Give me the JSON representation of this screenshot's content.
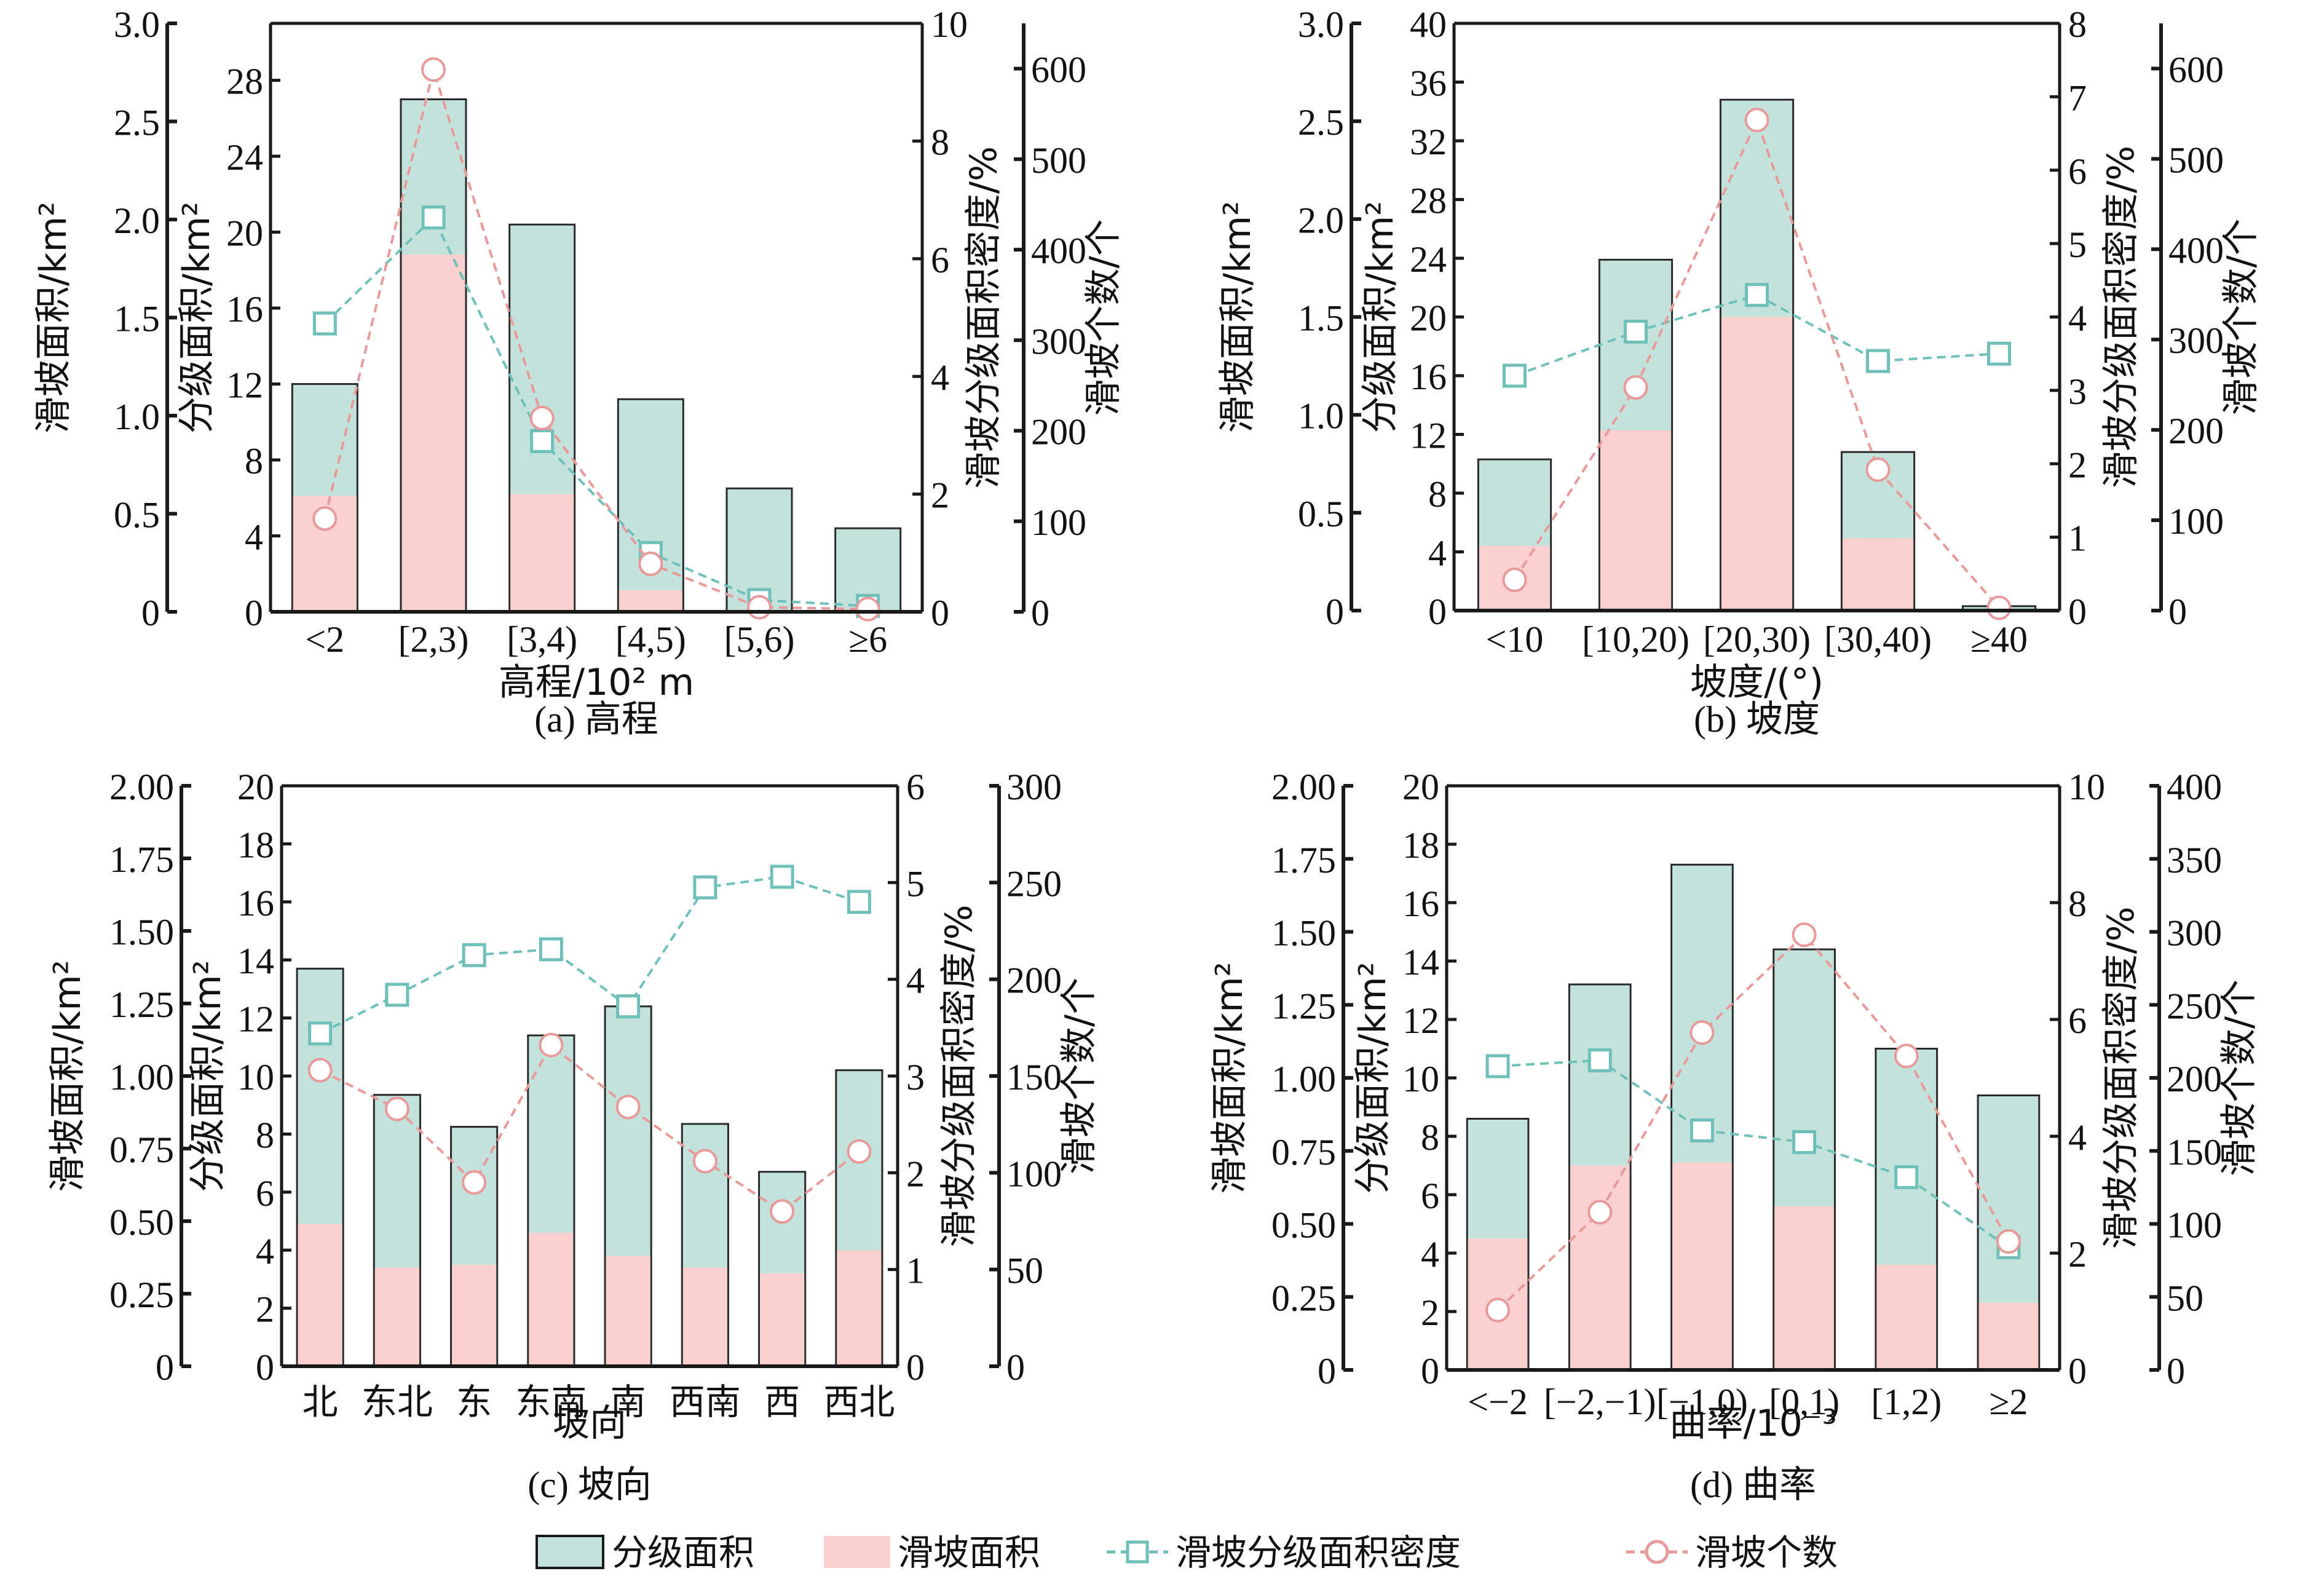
{
  "colors": {
    "class_area_fill": "#c3e2dc",
    "landslide_area_fill": "#f9d0ce",
    "density_line": "#6fc0b8",
    "count_line": "#e8999a",
    "axis": "#1a1a1a"
  },
  "legend": {
    "items": [
      {
        "key": "class_area",
        "label": "分级面积"
      },
      {
        "key": "landslide_area",
        "label": "滑坡面积"
      },
      {
        "key": "density",
        "label": "滑坡分级面积密度"
      },
      {
        "key": "count",
        "label": "滑坡个数"
      }
    ],
    "placement": "bottom-center"
  },
  "chart_data": [
    {
      "id": "a",
      "type": "bar",
      "title": "(a) 高程",
      "xlabel": "高程/10² m",
      "categories": [
        "<2",
        "[2,3)",
        "[3,4)",
        "[4,5)",
        "[5,6)",
        "≥6"
      ],
      "series": [
        {
          "name": "分级面积",
          "axis": "area",
          "kind": "bar",
          "values": [
            12.0,
            27.0,
            20.4,
            11.2,
            6.5,
            4.4
          ]
        },
        {
          "name": "滑坡面积",
          "axis": "landslide_area",
          "kind": "bar",
          "values": [
            0.59,
            1.82,
            0.6,
            0.11,
            0.01,
            0.005
          ]
        },
        {
          "name": "滑坡分级面积密度",
          "axis": "density",
          "kind": "line",
          "marker": "square",
          "values": [
            4.9,
            6.7,
            2.9,
            1.0,
            0.2,
            0.1
          ]
        },
        {
          "name": "滑坡个数",
          "axis": "count",
          "kind": "line",
          "marker": "circle",
          "values": [
            103,
            599,
            214,
            53,
            5,
            3
          ]
        }
      ],
      "axes": {
        "landslide_area": {
          "label": "滑坡面积/km²",
          "range": [
            0,
            3.0
          ],
          "ticks": [
            "0",
            "0.5",
            "1.0",
            "1.5",
            "2.0",
            "2.5",
            "3.0"
          ]
        },
        "area": {
          "label": "分级面积/km²",
          "range": [
            0,
            31
          ],
          "ticks": [
            "0",
            "4",
            "8",
            "12",
            "16",
            "20",
            "24",
            "28"
          ]
        },
        "density": {
          "label": "滑坡分级面积密度/%",
          "range": [
            0,
            10
          ],
          "ticks": [
            "0",
            "2",
            "4",
            "6",
            "8",
            "10"
          ]
        },
        "count": {
          "label": "滑坡个数/个",
          "range": [
            0,
            650
          ],
          "ticks": [
            "0",
            "100",
            "200",
            "300",
            "400",
            "500",
            "600"
          ]
        }
      }
    },
    {
      "id": "b",
      "type": "bar",
      "title": "(b) 坡度",
      "xlabel": "坡度/(°)",
      "categories": [
        "<10",
        "[10,20)",
        "[20,30)",
        "[30,40)",
        "≥40"
      ],
      "series": [
        {
          "name": "分级面积",
          "axis": "area",
          "kind": "bar",
          "values": [
            10.3,
            23.9,
            34.8,
            10.8,
            0.3
          ]
        },
        {
          "name": "滑坡面积",
          "axis": "landslide_area",
          "kind": "bar",
          "values": [
            0.33,
            0.92,
            1.5,
            0.37,
            0.005
          ]
        },
        {
          "name": "滑坡分级面积密度",
          "axis": "density",
          "kind": "line",
          "marker": "square",
          "values": [
            3.2,
            3.8,
            4.3,
            3.4,
            3.5
          ]
        },
        {
          "name": "滑坡个数",
          "axis": "count",
          "kind": "line",
          "marker": "circle",
          "values": [
            34,
            247,
            543,
            156,
            3
          ]
        }
      ],
      "axes": {
        "landslide_area": {
          "label": "滑坡面积/km²",
          "range": [
            0,
            3.0
          ],
          "ticks": [
            "0",
            "0.5",
            "1.0",
            "1.5",
            "2.0",
            "2.5",
            "3.0"
          ]
        },
        "area": {
          "label": "分级面积/km²",
          "range": [
            0,
            40
          ],
          "ticks": [
            "0",
            "4",
            "8",
            "12",
            "16",
            "20",
            "24",
            "28",
            "32",
            "36",
            "40"
          ]
        },
        "density": {
          "label": "滑坡分级面积密度/%",
          "range": [
            0,
            8
          ],
          "ticks": [
            "0",
            "1",
            "2",
            "3",
            "4",
            "5",
            "6",
            "7",
            "8"
          ]
        },
        "count": {
          "label": "滑坡个数/个",
          "range": [
            0,
            650
          ],
          "ticks": [
            "0",
            "100",
            "200",
            "300",
            "400",
            "500",
            "600"
          ]
        }
      }
    },
    {
      "id": "c",
      "type": "bar",
      "title": "(c) 坡向",
      "xlabel": "坡向",
      "categories": [
        "北",
        "东北",
        "东",
        "东南",
        "南",
        "西南",
        "西",
        "西北"
      ],
      "series": [
        {
          "name": "分级面积",
          "axis": "area",
          "kind": "bar",
          "values": [
            13.7,
            9.35,
            8.25,
            11.4,
            12.4,
            8.35,
            6.7,
            10.2
          ]
        },
        {
          "name": "滑坡面积",
          "axis": "landslide_area",
          "kind": "bar",
          "values": [
            0.49,
            0.34,
            0.35,
            0.46,
            0.38,
            0.34,
            0.32,
            0.4
          ]
        },
        {
          "name": "滑坡分级面积密度",
          "axis": "density",
          "kind": "line",
          "marker": "square",
          "values": [
            3.44,
            3.84,
            4.25,
            4.31,
            3.72,
            4.95,
            5.06,
            4.8
          ]
        },
        {
          "name": "滑坡个数",
          "axis": "count",
          "kind": "line",
          "marker": "circle",
          "values": [
            153,
            133,
            95,
            166,
            134,
            106,
            80,
            111
          ]
        }
      ],
      "axes": {
        "landslide_area": {
          "label": "滑坡面积/km²",
          "range": [
            0,
            2.0
          ],
          "ticks": [
            "0",
            "0.25",
            "0.50",
            "0.75",
            "1.00",
            "1.25",
            "1.50",
            "1.75",
            "2.00"
          ]
        },
        "area": {
          "label": "分级面积/km²",
          "range": [
            0,
            20
          ],
          "ticks": [
            "0",
            "2",
            "4",
            "6",
            "8",
            "10",
            "12",
            "14",
            "16",
            "18",
            "20"
          ]
        },
        "density": {
          "label": "滑坡分级面积密度/%",
          "range": [
            0,
            6
          ],
          "ticks": [
            "0",
            "1",
            "2",
            "3",
            "4",
            "5",
            "6"
          ]
        },
        "count": {
          "label": "滑坡个数/个",
          "range": [
            0,
            300
          ],
          "ticks": [
            "0",
            "50",
            "100",
            "150",
            "200",
            "250",
            "300"
          ]
        }
      }
    },
    {
      "id": "d",
      "type": "bar",
      "title": "(d) 曲率",
      "xlabel": "曲率/10⁻³",
      "categories": [
        "<−2",
        "[−2,−1)",
        "[−1,0)",
        "[0,1)",
        "[1,2)",
        "≥2"
      ],
      "series": [
        {
          "name": "分级面积",
          "axis": "area",
          "kind": "bar",
          "values": [
            8.6,
            13.2,
            17.3,
            14.4,
            11.0,
            9.4
          ]
        },
        {
          "name": "滑坡面积",
          "axis": "landslide_area",
          "kind": "bar",
          "values": [
            0.45,
            0.7,
            0.71,
            0.56,
            0.36,
            0.23
          ]
        },
        {
          "name": "滑坡分级面积密度",
          "axis": "density",
          "kind": "line",
          "marker": "square",
          "values": [
            5.2,
            5.3,
            4.1,
            3.9,
            3.3,
            2.1
          ]
        },
        {
          "name": "滑坡个数",
          "axis": "count",
          "kind": "line",
          "marker": "circle",
          "values": [
            41,
            108,
            231,
            298,
            215,
            88
          ]
        }
      ],
      "axes": {
        "landslide_area": {
          "label": "滑坡面积/km²",
          "range": [
            0,
            2.0
          ],
          "ticks": [
            "0",
            "0.25",
            "0.50",
            "0.75",
            "1.00",
            "1.25",
            "1.50",
            "1.75",
            "2.00"
          ]
        },
        "area": {
          "label": "分级面积/km²",
          "range": [
            0,
            20
          ],
          "ticks": [
            "0",
            "2",
            "4",
            "6",
            "8",
            "10",
            "12",
            "14",
            "16",
            "18",
            "20"
          ]
        },
        "density": {
          "label": "滑坡分级面积密度/%",
          "range": [
            0,
            10
          ],
          "ticks": [
            "0",
            "2",
            "4",
            "6",
            "8",
            "10"
          ]
        },
        "count": {
          "label": "滑坡个数/个",
          "range": [
            0,
            400
          ],
          "ticks": [
            "0",
            "50",
            "100",
            "150",
            "200",
            "250",
            "300",
            "350",
            "400"
          ]
        }
      }
    }
  ]
}
